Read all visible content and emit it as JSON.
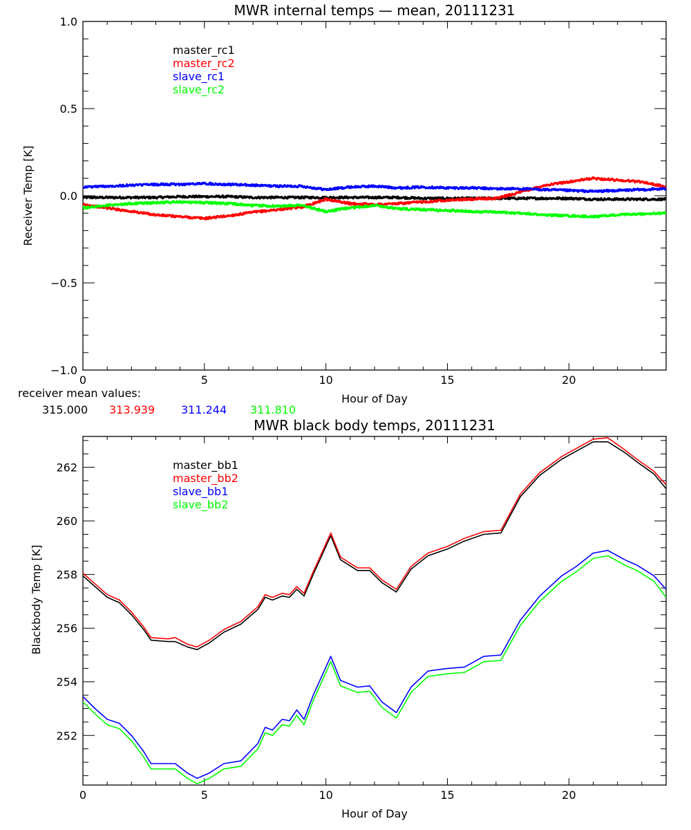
{
  "chart_data": [
    {
      "type": "line",
      "title": "MWR internal temps — mean, 20111231",
      "xlabel": "Hour of Day",
      "ylabel": "Receiver Temp [K]",
      "xlim": [
        0,
        24
      ],
      "ylim": [
        -1.0,
        1.0
      ],
      "xticks": [
        0,
        5,
        10,
        15,
        20
      ],
      "xtick_labels": [
        "0",
        "5",
        "10",
        "15",
        "20"
      ],
      "yticks": [
        -1.0,
        -0.5,
        0.0,
        0.5,
        1.0
      ],
      "ytick_labels": [
        "−1.0",
        "−0.5",
        "0.0",
        "0.5",
        "1.0"
      ],
      "grid": false,
      "legend_position": "top-left",
      "x": [
        0,
        1,
        2,
        3,
        4,
        5,
        6,
        7,
        8,
        9,
        10,
        11,
        12,
        13,
        14,
        15,
        16,
        17,
        18,
        19,
        20,
        21,
        22,
        23,
        24
      ],
      "series": [
        {
          "name": "master_rc1",
          "color": "#000000",
          "values": [
            -0.01,
            -0.01,
            -0.01,
            -0.01,
            -0.005,
            -0.005,
            -0.005,
            -0.01,
            -0.01,
            -0.01,
            -0.01,
            -0.01,
            -0.01,
            -0.01,
            -0.015,
            -0.015,
            -0.015,
            -0.015,
            -0.015,
            -0.015,
            -0.015,
            -0.02,
            -0.02,
            -0.02,
            -0.02
          ]
        },
        {
          "name": "master_rc2",
          "color": "#ff0000",
          "values": [
            -0.05,
            -0.07,
            -0.09,
            -0.11,
            -0.12,
            -0.13,
            -0.115,
            -0.095,
            -0.08,
            -0.065,
            -0.02,
            -0.045,
            -0.05,
            -0.045,
            -0.035,
            -0.025,
            -0.02,
            -0.015,
            0.02,
            0.06,
            0.08,
            0.1,
            0.09,
            0.08,
            0.05
          ]
        },
        {
          "name": "slave_rc1",
          "color": "#0000ff",
          "values": [
            0.05,
            0.055,
            0.06,
            0.065,
            0.065,
            0.07,
            0.065,
            0.06,
            0.055,
            0.055,
            0.035,
            0.05,
            0.055,
            0.045,
            0.05,
            0.045,
            0.045,
            0.04,
            0.04,
            0.035,
            0.03,
            0.025,
            0.03,
            0.035,
            0.04
          ]
        },
        {
          "name": "slave_rc2",
          "color": "#00ff00",
          "values": [
            -0.07,
            -0.055,
            -0.045,
            -0.04,
            -0.035,
            -0.04,
            -0.045,
            -0.055,
            -0.06,
            -0.055,
            -0.09,
            -0.07,
            -0.055,
            -0.075,
            -0.08,
            -0.085,
            -0.09,
            -0.095,
            -0.1,
            -0.11,
            -0.115,
            -0.12,
            -0.11,
            -0.105,
            -0.1
          ]
        }
      ],
      "annotation": {
        "label": "receiver mean values:",
        "values": [
          {
            "text": "315.000",
            "color": "#000000"
          },
          {
            "text": "313.939",
            "color": "#ff0000"
          },
          {
            "text": "311.244",
            "color": "#0000ff"
          },
          {
            "text": "311.810",
            "color": "#00ff00"
          }
        ]
      }
    },
    {
      "type": "line",
      "title": "MWR black body temps, 20111231",
      "xlabel": "Hour of Day",
      "ylabel": "Blackbody Temp [K]",
      "xlim": [
        0,
        24
      ],
      "ylim": [
        250.15,
        263.15
      ],
      "xticks": [
        0,
        5,
        10,
        15,
        20
      ],
      "xtick_labels": [
        "0",
        "5",
        "10",
        "15",
        "20"
      ],
      "yticks": [
        252,
        254,
        256,
        258,
        260,
        262
      ],
      "ytick_labels": [
        "252",
        "254",
        "256",
        "258",
        "260",
        "262"
      ],
      "grid": false,
      "legend_position": "top-left",
      "x": [
        0,
        0.5,
        1,
        1.5,
        2,
        2.5,
        2.8,
        3.5,
        3.8,
        4.3,
        4.7,
        5.2,
        5.8,
        6.5,
        7.2,
        7.5,
        7.8,
        8.2,
        8.5,
        8.8,
        9.1,
        9.5,
        10.2,
        10.6,
        11.3,
        11.8,
        12.3,
        12.9,
        13.5,
        14.2,
        15,
        15.7,
        16.5,
        17.2,
        18,
        18.8,
        19.7,
        20.3,
        21.0,
        21.6,
        22.3,
        22.8,
        23.5,
        24
      ],
      "series": [
        {
          "name": "master_bb1",
          "color": "#000000",
          "values": [
            257.95,
            257.55,
            257.15,
            256.95,
            256.5,
            255.95,
            255.55,
            255.5,
            255.5,
            255.3,
            255.2,
            255.45,
            255.85,
            256.15,
            256.7,
            257.15,
            257.05,
            257.2,
            257.15,
            257.45,
            257.2,
            258.05,
            259.45,
            258.55,
            258.15,
            258.15,
            257.7,
            257.35,
            258.2,
            258.7,
            258.95,
            259.25,
            259.5,
            259.55,
            260.9,
            261.7,
            262.3,
            262.6,
            262.95,
            262.95,
            262.55,
            262.2,
            261.75,
            261.2
          ]
        },
        {
          "name": "master_bb2",
          "color": "#ff0000",
          "values": [
            258.05,
            257.65,
            257.25,
            257.05,
            256.6,
            256.05,
            255.65,
            255.6,
            255.65,
            255.4,
            255.3,
            255.55,
            255.95,
            256.25,
            256.8,
            257.25,
            257.15,
            257.3,
            257.25,
            257.55,
            257.3,
            258.15,
            259.55,
            258.65,
            258.25,
            258.25,
            257.8,
            257.45,
            258.3,
            258.8,
            259.05,
            259.35,
            259.6,
            259.65,
            261.0,
            261.8,
            262.4,
            262.7,
            263.05,
            263.1,
            262.65,
            262.3,
            261.85,
            261.35
          ]
        },
        {
          "name": "slave_bb1",
          "color": "#0000ff",
          "values": [
            253.45,
            253.0,
            252.6,
            252.45,
            252.0,
            251.4,
            250.95,
            250.95,
            250.95,
            250.6,
            250.4,
            250.6,
            250.95,
            251.05,
            251.7,
            252.3,
            252.2,
            252.6,
            252.55,
            252.95,
            252.6,
            253.55,
            254.95,
            254.05,
            253.8,
            253.85,
            253.25,
            252.85,
            253.8,
            254.4,
            254.5,
            254.55,
            254.95,
            255.0,
            256.3,
            257.2,
            257.95,
            258.3,
            258.8,
            258.9,
            258.55,
            258.35,
            257.95,
            257.45
          ]
        },
        {
          "name": "slave_bb2",
          "color": "#00ff00",
          "values": [
            253.25,
            252.8,
            252.4,
            252.25,
            251.8,
            251.2,
            250.75,
            250.75,
            250.75,
            250.4,
            250.2,
            250.4,
            250.75,
            250.85,
            251.5,
            252.1,
            252.0,
            252.4,
            252.35,
            252.75,
            252.4,
            253.35,
            254.75,
            253.85,
            253.6,
            253.65,
            253.05,
            252.65,
            253.6,
            254.2,
            254.3,
            254.35,
            254.75,
            254.8,
            256.1,
            257.0,
            257.75,
            258.1,
            258.6,
            258.7,
            258.35,
            258.15,
            257.75,
            257.15
          ]
        }
      ]
    }
  ]
}
